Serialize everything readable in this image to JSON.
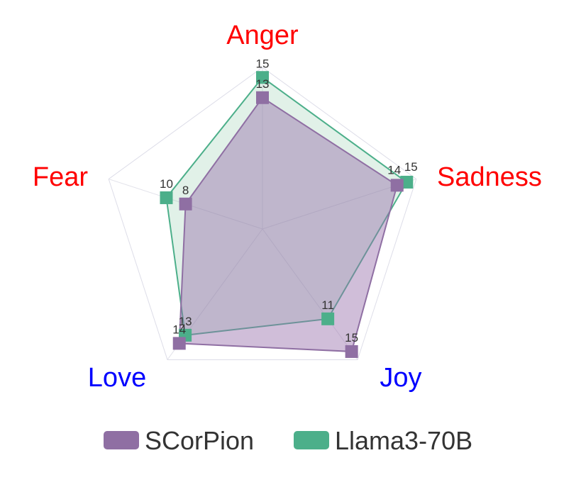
{
  "chart_data": {
    "type": "radar",
    "axes": [
      {
        "label": "Anger",
        "color": "#ff0000"
      },
      {
        "label": "Sadness",
        "color": "#ff0000"
      },
      {
        "label": "Joy",
        "color": "#0000ff"
      },
      {
        "label": "Love",
        "color": "#0000ff"
      },
      {
        "label": "Fear",
        "color": "#ff0000"
      }
    ],
    "range": [
      0,
      16
    ],
    "series": [
      {
        "name": "SCorPion",
        "color": "#8f6fa3",
        "values": [
          13,
          14,
          15,
          14,
          8
        ]
      },
      {
        "name": "Llama3-70B",
        "color": "#4caf8a",
        "values": [
          15,
          15,
          11,
          13,
          10
        ]
      }
    ],
    "legend": "bottom"
  }
}
